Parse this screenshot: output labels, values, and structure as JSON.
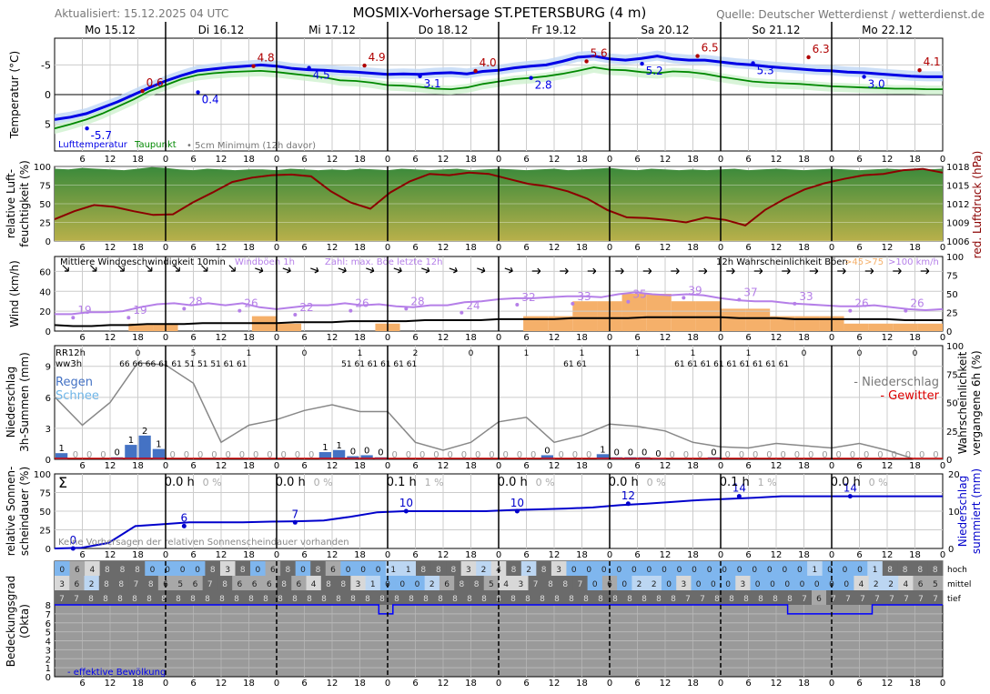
{
  "header": {
    "updated": "Aktualisiert: 15.12.2025 04 UTC",
    "title": "MOSMIX-Vorhersage ST.PETERSBURG (4 m)",
    "source": "Quelle: Deutscher Wetterdienst / wetterdienst.de"
  },
  "days": [
    "Mo 15.12",
    "Di 16.12",
    "Mi 17.12",
    "Do 18.12",
    "Fr 19.12",
    "Sa 20.12",
    "So 21.12",
    "Mo 22.12"
  ],
  "hour_ticks": [
    "6",
    "12",
    "18",
    "0"
  ],
  "panels": {
    "temp": {
      "ylabel": "Temperatur (°C)",
      "legend_temp": "Lufttemperatur",
      "legend_dew": "Taupunkt",
      "legend_min": "5cm Minimum (12h davor)",
      "yticks": [
        "5",
        "0",
        "-5"
      ]
    },
    "humid": {
      "ylabel1": "relative Luft-",
      "ylabel2": "feuchtigkeit (%)",
      "ylabel_right": "red. Luftdruck (hPa)",
      "yticks": [
        "100",
        "75",
        "50",
        "25",
        "0"
      ],
      "yticks_right": [
        "1018",
        "1015",
        "1012",
        "1009",
        "1006"
      ]
    },
    "wind": {
      "ylabel": "Wind (km/h)",
      "label_mean": "Mittlere Windgeschwindigkeit 10min",
      "label_gust": "Windböen 1h",
      "label_max": "Zahl: max. Böe letzte 12h",
      "label_prob": "12h Wahrscheinlichkeit Böen",
      "prob45": ">45",
      "prob75": ">75",
      "prob100": ">100 km/h",
      "yticks": [
        "60",
        "40",
        "20",
        "0"
      ],
      "yticks_right": [
        "100",
        "75",
        "50",
        "25",
        "0"
      ]
    },
    "precip": {
      "ylabel1": "Niederschlag",
      "ylabel2": "3h-Summen (mm)",
      "ylabel_right1": "Wahrscheinlichkeit",
      "ylabel_right2": "vergangene 6h (%)",
      "rr12h": "RR12h",
      "ww3h": "ww3h",
      "rain": "Regen",
      "snow": "Schnee",
      "niederschlag": "- Niederschlag",
      "gewitter": "- Gewitter",
      "yticks": [
        "9",
        "6",
        "3",
        "0"
      ],
      "yticks_right": [
        "100",
        "75",
        "50",
        "25",
        "0"
      ]
    },
    "sun": {
      "ylabel1": "relative Sonnen-",
      "ylabel2": "scheindauer (%)",
      "ylabel_right1": "Niederschlag",
      "ylabel_right2": "summiert (mm)",
      "sigma": "Σ",
      "note": "Keine Vorhersagen der relativen Sonnenscheindauer vorhanden",
      "yticks": [
        "100",
        "75",
        "50",
        "25",
        "0"
      ],
      "yticks_right": [
        "20",
        "10",
        "0"
      ]
    },
    "cloud": {
      "ylabel1": "Bedeckungsgrad",
      "ylabel2": "(Okta)",
      "hoch": "hoch",
      "mittel": "mittel",
      "tief": "tief",
      "effective": "- effektive Bewölkung",
      "yticks": [
        "8",
        "7",
        "6",
        "5",
        "4",
        "3",
        "2",
        "1",
        "0"
      ]
    }
  },
  "chart_data": {
    "type": "line",
    "x_hours_from_0h_15_12": [
      0,
      3,
      6,
      9,
      12,
      15,
      18,
      21,
      24,
      27,
      30,
      33,
      36,
      39,
      42,
      45,
      48,
      51,
      54,
      57,
      60,
      63,
      66,
      69,
      72,
      75,
      78,
      81,
      84,
      87,
      90,
      93,
      96,
      99,
      102,
      105,
      108,
      111,
      114,
      117,
      120,
      123,
      126,
      129,
      132,
      135,
      138,
      141,
      144,
      147,
      150,
      153,
      156,
      159,
      162,
      165,
      168,
      171,
      174,
      177,
      180,
      183,
      186,
      189,
      192
    ],
    "temperature": [
      -4.2,
      -3.8,
      -3.2,
      -2.2,
      -1.2,
      0,
      1.2,
      2.3,
      3.2,
      4.0,
      4.3,
      4.6,
      4.8,
      5.0,
      4.8,
      4.4,
      4.2,
      4.1,
      3.9,
      3.8,
      3.6,
      3.4,
      3.5,
      3.4,
      3.6,
      3.7,
      3.5,
      3.9,
      4.1,
      4.5,
      4.8,
      5.0,
      5.6,
      6.3,
      6.5,
      6.0,
      5.8,
      6.1,
      6.5,
      6.0,
      5.8,
      5.8,
      5.5,
      5.2,
      5.0,
      4.7,
      4.5,
      4.3,
      4.1,
      4.0,
      3.8,
      3.7,
      3.5,
      3.3,
      3.1,
      3.0,
      3.0
    ],
    "dewpoint": [
      -5.7,
      -5.0,
      -4.2,
      -3.2,
      -2.0,
      -0.8,
      0.6,
      1.6,
      2.6,
      3.3,
      3.6,
      3.8,
      3.9,
      4.0,
      3.8,
      3.5,
      3.2,
      2.9,
      2.4,
      2.3,
      2.0,
      1.6,
      1.5,
      1.3,
      1.0,
      0.9,
      1.2,
      1.8,
      2.2,
      2.6,
      2.8,
      3.1,
      3.5,
      4.0,
      4.6,
      4.2,
      4.1,
      3.8,
      3.6,
      3.9,
      3.8,
      3.5,
      3.0,
      2.6,
      2.2,
      2.0,
      1.9,
      1.8,
      1.6,
      1.4,
      1.3,
      1.2,
      1.1,
      1.0,
      1.0,
      0.9,
      0.9
    ],
    "temp_labels": [
      {
        "value": "-5.7",
        "kind": "min",
        "x": 7
      },
      {
        "value": "0.6",
        "kind": "max",
        "x": 19
      },
      {
        "value": "0.4",
        "kind": "min",
        "x": 31
      },
      {
        "value": "4.8",
        "kind": "max",
        "x": 43
      },
      {
        "value": "4.5",
        "kind": "min",
        "x": 55
      },
      {
        "value": "4.9",
        "kind": "max",
        "x": 67
      },
      {
        "value": "3.1",
        "kind": "min",
        "x": 79
      },
      {
        "value": "4.0",
        "kind": "max",
        "x": 91
      },
      {
        "value": "2.8",
        "kind": "min",
        "x": 103
      },
      {
        "value": "5.6",
        "kind": "max",
        "x": 115
      },
      {
        "value": "5.2",
        "kind": "min",
        "x": 127
      },
      {
        "value": "6.5",
        "kind": "max",
        "x": 139
      },
      {
        "value": "5.3",
        "kind": "min",
        "x": 151
      },
      {
        "value": "6.3",
        "kind": "max",
        "x": 163
      },
      {
        "value": "3.0",
        "kind": "min",
        "x": 175
      },
      {
        "value": "4.1",
        "kind": "max",
        "x": 187
      }
    ],
    "temp_ylim": [
      -9.5,
      9.5
    ],
    "humidity": [
      97,
      96,
      98,
      97,
      96,
      95,
      97,
      99,
      98,
      96,
      95,
      97,
      96,
      95,
      96,
      96,
      95,
      97,
      96,
      95,
      96,
      95,
      97,
      96,
      95,
      97,
      96,
      95,
      96,
      97,
      95,
      96,
      97,
      96,
      95,
      96,
      97,
      95,
      96,
      97,
      98,
      96,
      95,
      97,
      96,
      95,
      96,
      95,
      96,
      97,
      95,
      96,
      97,
      96,
      95,
      96,
      97,
      96,
      95,
      96,
      97,
      96,
      95,
      96,
      97
    ],
    "pressure": [
      1009.5,
      1010.8,
      1011.8,
      1011.5,
      1010.8,
      1010.2,
      1010.3,
      1012.2,
      1013.8,
      1015.5,
      1016.2,
      1016.6,
      1016.7,
      1016.4,
      1014.0,
      1012.2,
      1011.2,
      1013.8,
      1015.6,
      1016.8,
      1016.6,
      1017.0,
      1016.8,
      1016.0,
      1015.2,
      1014.8,
      1014.0,
      1012.8,
      1011.0,
      1009.8,
      1009.7,
      1009.4,
      1009.0,
      1009.8,
      1009.4,
      1008.5,
      1011.0,
      1012.8,
      1014.3,
      1015.3,
      1016.0,
      1016.6,
      1016.8,
      1017.4,
      1017.6,
      1017.0
    ],
    "humidity_ylim": [
      0,
      100
    ],
    "pressure_ylim": [
      1006,
      1018
    ],
    "wind_mean": [
      6,
      5,
      5,
      6,
      6,
      7,
      7,
      7,
      8,
      8,
      8,
      8,
      8,
      9,
      9,
      9,
      10,
      10,
      10,
      10,
      11,
      11,
      11,
      11,
      12,
      12,
      12,
      12,
      13,
      13,
      13,
      13,
      14,
      14,
      14,
      14,
      14,
      13,
      13,
      13,
      12,
      12,
      12,
      12,
      12,
      12,
      11,
      11,
      11
    ],
    "wind_gust": [
      17,
      17,
      19,
      19,
      20,
      24,
      27,
      28,
      26,
      28,
      26,
      28,
      24,
      22,
      24,
      26,
      26,
      28,
      26,
      27,
      25,
      24,
      26,
      26,
      29,
      30,
      32,
      33,
      33,
      34,
      35,
      35,
      34,
      37,
      39,
      37,
      36,
      37,
      36,
      33,
      31,
      30,
      30,
      28,
      27,
      26,
      25,
      25,
      26,
      24,
      22,
      21,
      22
    ],
    "wind_max_labels": [
      "19",
      "19",
      "28",
      "26",
      "22",
      "26",
      "28",
      "24",
      "32",
      "33",
      "35",
      "39",
      "37",
      "33",
      "26",
      "26"
    ],
    "wind_ylim": [
      0,
      75
    ],
    "gust_prob_45": [
      0,
      0,
      0,
      10,
      10,
      0,
      0,
      0,
      20,
      10,
      0,
      0,
      0,
      10,
      0,
      0,
      0,
      0,
      0,
      20,
      20,
      40,
      40,
      50,
      50,
      40,
      40,
      30,
      30,
      20,
      20,
      20,
      10,
      10,
      10,
      10
    ],
    "precip_3h": [
      0.6,
      0.0,
      0.0,
      0.0,
      0.2,
      1.4,
      2.3,
      1.0,
      0.0,
      0.0,
      0.0,
      0.0,
      0.0,
      0.0,
      0.0,
      0.0,
      0.0,
      0.0,
      0.0,
      0.7,
      0.9,
      0.3,
      0.4,
      0.2,
      0.0,
      0.0,
      0.0,
      0.0,
      0.0,
      0.0,
      0.0,
      0.0,
      0.0,
      0.0,
      0.0,
      0.4,
      0.0,
      0.0,
      0.0,
      0.5,
      0.2,
      0.2,
      0.2,
      0.1,
      0.0,
      0.0,
      0.0,
      0.2,
      0.0,
      0.0,
      0.0,
      0.0,
      0.0,
      0.0,
      0.0,
      0.0,
      0.0,
      0.0,
      0.0,
      0.0,
      0.0,
      0.0,
      0.0,
      0.0
    ],
    "precip_prob_6h": [
      55,
      30,
      50,
      85,
      83,
      67,
      15,
      30,
      35,
      43,
      48,
      42,
      42,
      15,
      8,
      15,
      33,
      37,
      15,
      21,
      31,
      29,
      25,
      15,
      11,
      10,
      14,
      12,
      10,
      14,
      8,
      0,
      0
    ],
    "precip_ylim": [
      0,
      11
    ],
    "rr12h": [
      "0",
      "5",
      "1",
      "0",
      "1",
      "2",
      "0",
      "1",
      "1",
      "1",
      "1",
      "1",
      "0",
      "0",
      "0"
    ],
    "ww3h_row": [
      "66 66 66 61 61 51 51 51 61 61",
      "",
      "51 61 61 61 61 61",
      "",
      "61 61",
      "61 61 61 61 61 61 61 61 61",
      "",
      ""
    ],
    "sunshine_hours": [
      "0.0 h",
      "0.0 h",
      "0.1 h",
      "0.0 h",
      "0.0 h",
      "0.1 h",
      "0.0 h"
    ],
    "sunshine_pct": [
      "0 %",
      "0 %",
      "1 %",
      "0 %",
      "0 %",
      "1 %",
      "0 %"
    ],
    "precip_sum": [
      0,
      0.2,
      1.5,
      6,
      6.5,
      7,
      7,
      7,
      7.2,
      7.3,
      7.5,
      8.5,
      9.7,
      10,
      10,
      10,
      10,
      10.3,
      10.5,
      10.7,
      11,
      11.6,
      12,
      12.5,
      13,
      13.3,
      13.6,
      14,
      14,
      14,
      14,
      14,
      14,
      14
    ],
    "precip_sum_labels": [
      "0",
      "6",
      "7",
      "10",
      "10",
      "12",
      "14",
      "14"
    ],
    "precip_sum_ylim": [
      0,
      20
    ],
    "cloud_hoch": [
      0,
      6,
      4,
      8,
      8,
      8,
      0,
      0,
      0,
      0,
      8,
      3,
      8,
      0,
      6,
      8,
      0,
      8,
      6,
      0,
      0,
      0,
      1,
      1,
      8,
      8,
      8,
      3,
      2,
      4,
      8,
      2,
      8,
      3,
      0,
      0,
      0,
      0,
      0,
      0,
      0,
      0,
      0,
      0,
      0,
      0,
      0,
      0,
      0,
      0,
      1,
      0,
      0,
      0,
      1,
      8,
      8,
      8,
      8
    ],
    "cloud_mittel": [
      3,
      6,
      2,
      8,
      8,
      7,
      8,
      6,
      5,
      6,
      7,
      8,
      6,
      6,
      6,
      8,
      6,
      4,
      8,
      8,
      3,
      1,
      0,
      0,
      0,
      2,
      6,
      8,
      8,
      5,
      4,
      3,
      7,
      8,
      8,
      7,
      0,
      6,
      0,
      2,
      2,
      0,
      3,
      0,
      0,
      0,
      3,
      0,
      0,
      0,
      0,
      0,
      0,
      0,
      4,
      2,
      2,
      4,
      6,
      5
    ],
    "cloud_tief": [
      7,
      7,
      8,
      8,
      8,
      8,
      8,
      8,
      8,
      8,
      8,
      8,
      8,
      8,
      8,
      8,
      8,
      8,
      8,
      8,
      8,
      8,
      8,
      8,
      8,
      8,
      8,
      8,
      8,
      8,
      8,
      8,
      8,
      8,
      8,
      8,
      8,
      8,
      8,
      8,
      8,
      8,
      8,
      7,
      7,
      8,
      8,
      8,
      8,
      8,
      8,
      7,
      6,
      7,
      7,
      7,
      7,
      7,
      7,
      7,
      7
    ],
    "cloud_effective": [
      8,
      8,
      8,
      8,
      8,
      8,
      8,
      8,
      8,
      8,
      8,
      8,
      8,
      8,
      8,
      8,
      8,
      8,
      8,
      8,
      8,
      8,
      8,
      7,
      8,
      8,
      8,
      8,
      8,
      8,
      8,
      8,
      8,
      8,
      8,
      8,
      8,
      8,
      8,
      8,
      8,
      8,
      8,
      8,
      8,
      8,
      8,
      8,
      8,
      8,
      8,
      8,
      7,
      7,
      7,
      7,
      7,
      7,
      8,
      8,
      8,
      8,
      8,
      8
    ],
    "cloud_ylim": [
      0,
      8
    ],
    "colors": {
      "temp": "#0000e6",
      "dew": "#008800",
      "pressure": "#8b0000",
      "gust": "#b57fe8",
      "max_label": "#b00000",
      "rain": "#4472c4",
      "snow": "#6fb6e8",
      "sum": "#0000cc",
      "bar_orange": "#f5b06a"
    }
  }
}
